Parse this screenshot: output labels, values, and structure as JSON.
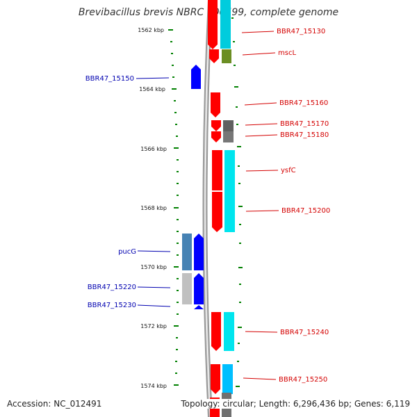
{
  "title": "Brevibacillus brevis NBRC 100599, complete genome",
  "accession": "Accession: NC_012491",
  "topology": "Topology: circular; Length: 6,296,436 bp; Genes: 6,119",
  "tick_labels": [
    "1562 kbp",
    "1564 kbp",
    "1566 kbp",
    "1568 kbp",
    "1570 kbp",
    "1572 kbp",
    "1574 kbp"
  ],
  "forward_labels": [
    "BBR47_15130",
    "mscL",
    "BBR47_15160",
    "BBR47_15170",
    "BBR47_15180",
    "ysfC",
    "BBR47_15200",
    "BBR47_15240",
    "BBR47_15250"
  ],
  "reverse_labels": [
    "BBR47_15150",
    "pucG",
    "BBR47_15220",
    "BBR47_15230"
  ],
  "colors": {
    "forward_strand": "#ff0000",
    "reverse_strand": "#0000ff",
    "backbone": "#888888",
    "ticks": "#008000",
    "forward_label": "#d40000",
    "reverse_label": "#0000b0",
    "cog_cyan": "#00ccdd",
    "cog_olive": "#6b8e23",
    "cog_gray": "#606060",
    "cog_steelblue": "#4682b4",
    "cog_silver": "#c0c0c0"
  }
}
